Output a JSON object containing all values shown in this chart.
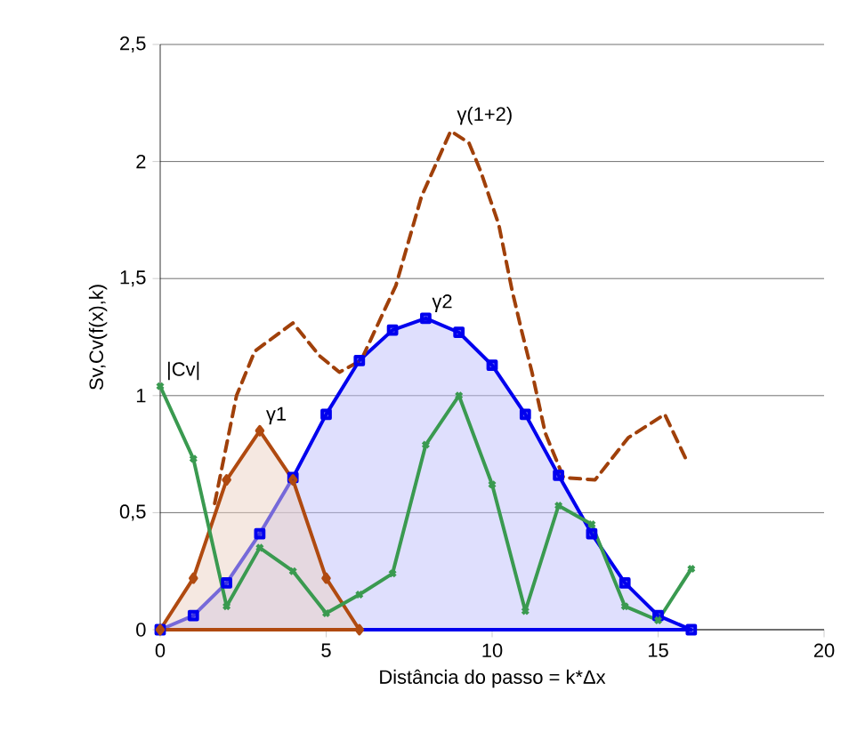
{
  "chart_data": {
    "type": "line",
    "xlabel": "Distância do passo = k*Δx",
    "ylabel": "Sv,Cv(f(x),k)",
    "xlim": [
      0,
      20
    ],
    "xticks": [
      0,
      5,
      10,
      15,
      20
    ],
    "ylim": [
      0,
      2.5
    ],
    "yticks": [
      0,
      {
        "value": 0.5,
        "label": "0,5"
      },
      1,
      {
        "value": 1.5,
        "label": "1,5"
      },
      2,
      {
        "value": 2.5,
        "label": "2,5"
      }
    ],
    "grid": "y",
    "series": [
      {
        "name": "γ2",
        "type": "area",
        "color": "#0000ee",
        "marker": "square",
        "line_style": "solid",
        "x": [
          0,
          1,
          2,
          3,
          4,
          5,
          6,
          7,
          8,
          9,
          10,
          11,
          12,
          13,
          14,
          15,
          16
        ],
        "values": [
          0,
          0.06,
          0.2,
          0.41,
          0.65,
          0.92,
          1.15,
          1.28,
          1.33,
          1.27,
          1.13,
          0.92,
          0.66,
          0.41,
          0.2,
          0.06,
          0
        ]
      },
      {
        "name": "γ1",
        "type": "area",
        "color": "#b04a10",
        "marker": "diamond",
        "line_style": "solid",
        "x": [
          0,
          1,
          2,
          3,
          4,
          5,
          6
        ],
        "values": [
          0,
          0.22,
          0.64,
          0.85,
          0.64,
          0.22,
          0
        ]
      },
      {
        "name": "|Cv|",
        "color": "#3a9a50",
        "marker": "cross",
        "line_style": "solid",
        "x": [
          0,
          1,
          2,
          3,
          4,
          5,
          6,
          7,
          8,
          9,
          10,
          11,
          12,
          13,
          14,
          15,
          16
        ],
        "values": [
          1.04,
          0.73,
          0.1,
          0.35,
          0.25,
          0.07,
          0.15,
          0.24,
          0.79,
          1.0,
          0.62,
          0.08,
          0.53,
          0.45,
          0.1,
          0.04,
          0.26
        ]
      },
      {
        "name": "γ(1+2)",
        "color": "#a0400a",
        "marker": "none",
        "line_style": "dashed",
        "x": [
          1.6,
          2.3,
          2.85,
          4.0,
          4.8,
          5.4,
          6.05,
          7.1,
          7.87,
          8.75,
          9.3,
          9.65,
          10.2,
          10.6,
          10.9,
          11.2,
          11.6,
          12.15,
          13.1,
          14.1,
          15.2,
          15.9
        ],
        "values": [
          0.51,
          1.0,
          1.19,
          1.31,
          1.17,
          1.1,
          1.15,
          1.47,
          1.85,
          2.13,
          2.08,
          1.96,
          1.73,
          1.45,
          1.27,
          1.1,
          0.84,
          0.65,
          0.64,
          0.82,
          0.92,
          0.71
        ]
      }
    ]
  }
}
